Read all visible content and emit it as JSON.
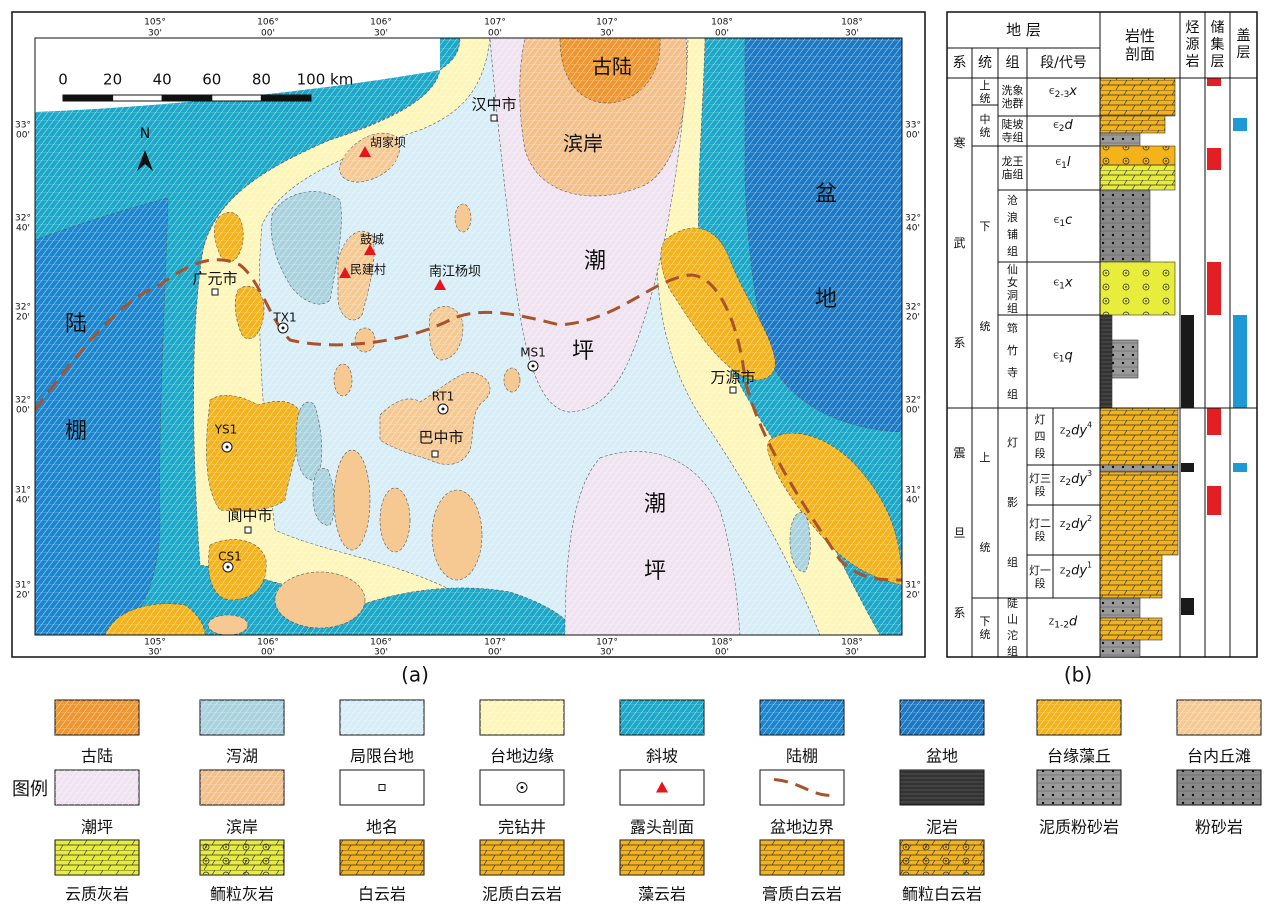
{
  "map": {
    "title": "(a)",
    "longitudes": [
      [
        "105°",
        "30'"
      ],
      [
        "106°",
        "00'"
      ],
      [
        "106°",
        "30'"
      ],
      [
        "107°",
        "00'"
      ],
      [
        "107°",
        "30'"
      ],
      [
        "108°",
        "00'"
      ],
      [
        "108°",
        "30'"
      ]
    ],
    "latitudes": [
      [
        "33°",
        "00'"
      ],
      [
        "32°",
        "40'"
      ],
      [
        "32°",
        "20'"
      ],
      [
        "32°",
        "00'"
      ],
      [
        "31°",
        "40'"
      ],
      [
        "31°",
        "20'"
      ]
    ],
    "scale": [
      "0",
      "20",
      "40",
      "60",
      "80",
      "100 km"
    ],
    "north": "N",
    "labels": [
      "古陆",
      "汉中市",
      "滨岸",
      "胡家坝",
      "鼓城",
      "民建村",
      "南江杨坝",
      "潮",
      "坪",
      "盆",
      "地",
      "广元市",
      "TX1",
      "MS1",
      "陆",
      "棚",
      "RT1",
      "巴中市",
      "万源市",
      "YS1",
      "阆中市",
      "CS1",
      "潮",
      "坪"
    ]
  },
  "column": {
    "title": "(b)",
    "headers": {
      "strata": "地 层",
      "system": "系",
      "series": "统",
      "formation": "组",
      "member": "段/代号",
      "lithology": "岩性剖面",
      "source": "烃源岩",
      "reservoir": "储集层",
      "cap": "盖层"
    },
    "systems": [
      "寒武系",
      "震旦系"
    ],
    "series": [
      "上统",
      "中统",
      "下统",
      "上统",
      "下统"
    ],
    "formations": [
      "洗象池群",
      "陡坡寺组",
      "龙王庙组",
      "沧浪铺组",
      "仙女洞组",
      "筇竹寺组",
      "灯影组",
      "陡山沱组"
    ],
    "members": [
      "灯四段",
      "灯三段",
      "灯二段",
      "灯一段"
    ],
    "codes": [
      [
        "Є",
        "2-3",
        "x"
      ],
      [
        "Є",
        "2",
        "d"
      ],
      [
        "Є",
        "1",
        "l"
      ],
      [
        "Є",
        "1",
        "c"
      ],
      [
        "Є",
        "1",
        "x"
      ],
      [
        "Є",
        "1",
        "q"
      ],
      [
        "Z",
        "2",
        "dy",
        "4"
      ],
      [
        "Z",
        "2",
        "dy",
        "3"
      ],
      [
        "Z",
        "2",
        "dy",
        "2"
      ],
      [
        "Z",
        "2",
        "dy",
        "1"
      ],
      [
        "Z",
        "1-2",
        "d"
      ]
    ]
  },
  "legend": {
    "title": "图例",
    "items": [
      {
        "label": "古陆",
        "color": "#f0962e"
      },
      {
        "label": "泻湖",
        "color": "#a9d2df"
      },
      {
        "label": "局限台地",
        "color": "#d7edf7"
      },
      {
        "label": "台地边缘",
        "color": "#fdf6b8"
      },
      {
        "label": "斜坡",
        "color": "#19a8c9"
      },
      {
        "label": "陆棚",
        "color": "#1b86d0"
      },
      {
        "label": "盆地",
        "color": "#1c79c6"
      },
      {
        "label": "台缘藻丘",
        "color": "#f5b31a"
      },
      {
        "label": "台内丘滩",
        "color": "#f6c992"
      },
      {
        "label": "潮坪",
        "color": "#efe3f1"
      },
      {
        "label": "滨岸",
        "color": "#f3c08a"
      },
      {
        "label": "地名",
        "color": "#ffffff"
      },
      {
        "label": "完钻井",
        "color": "#ffffff"
      },
      {
        "label": "露头剖面",
        "color": "#ffffff"
      },
      {
        "label": "盆地边界",
        "color": "#ffffff"
      },
      {
        "label": "泥岩",
        "color": "#333333"
      },
      {
        "label": "泥质粉砂岩",
        "color": "#9a9a9a"
      },
      {
        "label": "粉砂岩",
        "color": "#8a8a8a"
      },
      {
        "label": "云质灰岩",
        "color": "#e8ec3a"
      },
      {
        "label": "鲕粒灰岩",
        "color": "#e8ec3a"
      },
      {
        "label": "白云岩",
        "color": "#f5b31a"
      },
      {
        "label": "泥质白云岩",
        "color": "#f5b31a"
      },
      {
        "label": "藻云岩",
        "color": "#f5b31a"
      },
      {
        "label": "膏质白云岩",
        "color": "#f5b31a"
      },
      {
        "label": "鲕粒白云岩",
        "color": "#f5b31a"
      }
    ]
  }
}
